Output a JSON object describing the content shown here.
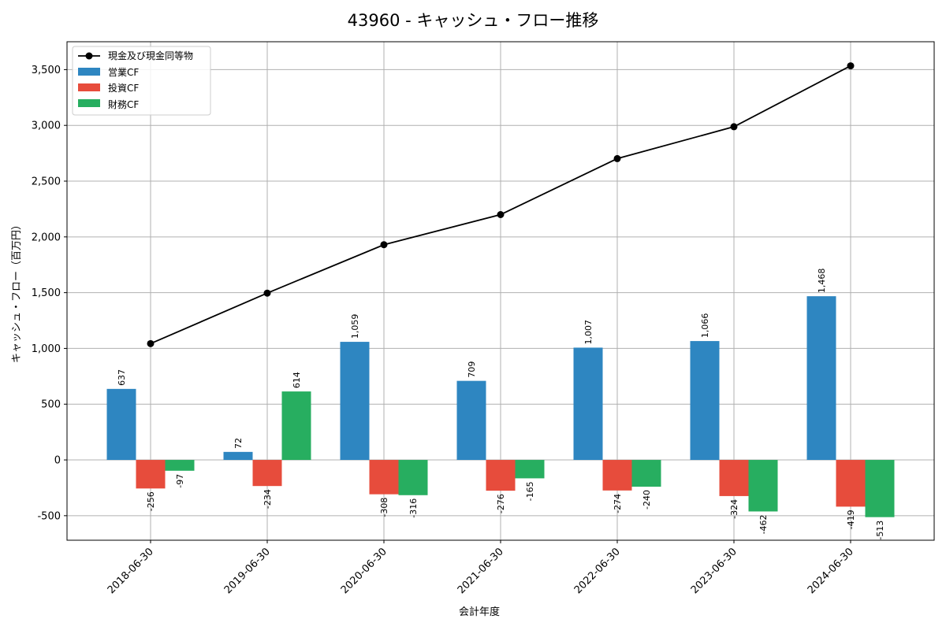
{
  "chart_data": {
    "type": "bar+line",
    "title": "43960 - キャッシュ・フロー推移",
    "xlabel": "会計年度",
    "ylabel": "キャッシュ・フロー（百万円）",
    "categories": [
      "2018-06-30",
      "2019-06-30",
      "2020-06-30",
      "2021-06-30",
      "2022-06-30",
      "2023-06-30",
      "2024-06-30"
    ],
    "ylim": [
      -720,
      3750
    ],
    "yticks": [
      -500,
      0,
      500,
      1000,
      1500,
      2000,
      2500,
      3000,
      3500
    ],
    "ytick_labels": [
      "-500",
      "0",
      "500",
      "1,000",
      "1,500",
      "2,000",
      "2,500",
      "3,000",
      "3,500"
    ],
    "grid": true,
    "legend_position": "top-left",
    "line_series": {
      "name": "現金及び現金同等物",
      "color": "#000000",
      "values": [
        1043,
        1496,
        1930,
        2200,
        2702,
        2988,
        3534
      ]
    },
    "bar_series": [
      {
        "name": "営業CF",
        "color": "#2e86c1",
        "values": [
          637,
          72,
          1059,
          709,
          1007,
          1066,
          1468
        ],
        "labels": [
          "637",
          "72",
          "1,059",
          "709",
          "1,007",
          "1,066",
          "1,468"
        ]
      },
      {
        "name": "投資CF",
        "color": "#e74c3c",
        "values": [
          -256,
          -234,
          -308,
          -276,
          -274,
          -324,
          -419
        ],
        "labels": [
          "-256",
          "-234",
          "-308",
          "-276",
          "-274",
          "-324",
          "-419"
        ]
      },
      {
        "name": "財務CF",
        "color": "#27ae60",
        "values": [
          -97,
          614,
          -316,
          -165,
          -240,
          -462,
          -513
        ],
        "labels": [
          "-97",
          "614",
          "-316",
          "-165",
          "-240",
          "-462",
          "-513"
        ]
      }
    ]
  }
}
